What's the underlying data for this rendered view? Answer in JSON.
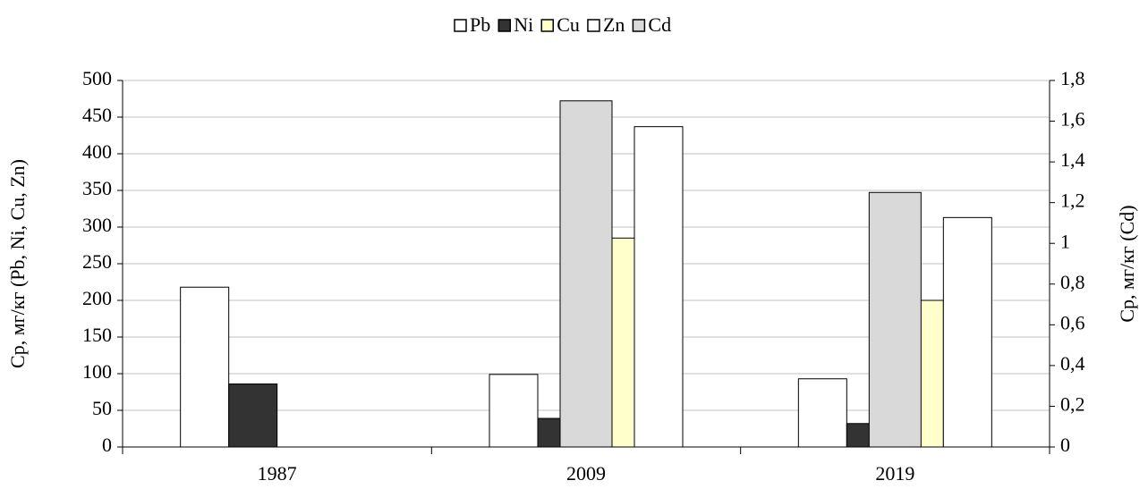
{
  "chart_data": {
    "type": "bar",
    "categories": [
      "1987",
      "2009",
      "2019"
    ],
    "y_label": "Ср, мг/кг (Pb, Ni, Cu, Zn)",
    "y2_label": "Ср, мг/кг (Cd)",
    "series": [
      {
        "name": "Pb",
        "color": "#ffffff",
        "values": [
          218,
          99,
          93
        ]
      },
      {
        "name": "Ni",
        "color": "#333333",
        "values": [
          86,
          39,
          32
        ]
      },
      {
        "name": "Cu",
        "color": "#ffffcc",
        "values": [
          0,
          285,
          200
        ]
      },
      {
        "name": "Zn",
        "color": "#ffffff",
        "values": [
          0,
          437,
          313
        ]
      },
      {
        "name": "Cd",
        "color": "#d9d9d9",
        "values": [
          0,
          1.7,
          1.25
        ],
        "axis": "y2"
      }
    ],
    "ylim": [
      0,
      500
    ],
    "yticks": [
      0,
      50,
      100,
      150,
      200,
      250,
      300,
      350,
      400,
      450,
      500
    ],
    "y2lim": [
      0,
      1.8
    ],
    "y2ticks": [
      0,
      {
        "value": 0.2,
        "label": "0,2"
      },
      {
        "value": 0.4,
        "label": "0,4"
      },
      {
        "value": 0.6,
        "label": "0,6"
      },
      {
        "value": 0.8,
        "label": "0,8"
      },
      1,
      {
        "value": 1.2,
        "label": "1,2"
      },
      {
        "value": 1.4,
        "label": "1,4"
      },
      {
        "value": 1.6,
        "label": "1,6"
      },
      {
        "value": 1.8,
        "label": "1,8"
      }
    ],
    "grid": true,
    "legend": "top"
  }
}
